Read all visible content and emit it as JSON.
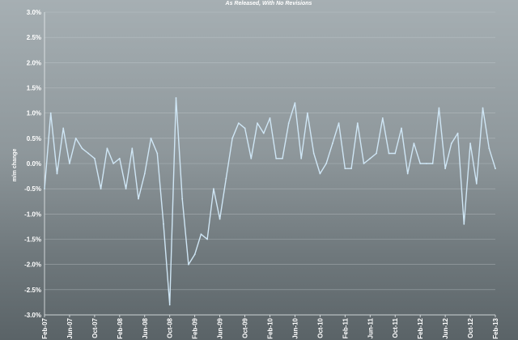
{
  "chart_data": {
    "type": "line",
    "title": "As Released, With No Revisions",
    "xlabel": "",
    "ylabel": "m/m change",
    "ylim": [
      -3.0,
      3.0
    ],
    "yticks": [
      "3.0%",
      "2.5%",
      "2.0%",
      "1.5%",
      "1.0%",
      "0.5%",
      "0.0%",
      "-0.5%",
      "-1.0%",
      "-1.5%",
      "-2.0%",
      "-2.5%",
      "-3.0%"
    ],
    "xticks": [
      "Feb-07",
      "Jun-07",
      "Oct-07",
      "Feb-08",
      "Jun-08",
      "Oct-08",
      "Feb-09",
      "Jun-09",
      "Oct-09",
      "Feb-10",
      "Jun-10",
      "Oct-10",
      "Feb-11",
      "Jun-11",
      "Oct-11",
      "Feb-12",
      "Jun-12",
      "Oct-12",
      "Feb-13"
    ],
    "grid": true,
    "line_color": "#cfe6f5",
    "series": [
      {
        "name": "",
        "x": [
          "2007-02",
          "2007-03",
          "2007-04",
          "2007-05",
          "2007-06",
          "2007-07",
          "2007-08",
          "2007-09",
          "2007-10",
          "2007-11",
          "2007-12",
          "2008-01",
          "2008-02",
          "2008-03",
          "2008-04",
          "2008-05",
          "2008-06",
          "2008-07",
          "2008-08",
          "2008-09",
          "2008-10",
          "2008-11",
          "2008-12",
          "2009-01",
          "2009-02",
          "2009-03",
          "2009-04",
          "2009-05",
          "2009-06",
          "2009-07",
          "2009-08",
          "2009-09",
          "2009-10",
          "2009-11",
          "2009-12",
          "2010-01",
          "2010-02",
          "2010-03",
          "2010-04",
          "2010-05",
          "2010-06",
          "2010-07",
          "2010-08",
          "2010-09",
          "2010-10",
          "2010-11",
          "2010-12",
          "2011-01",
          "2011-02",
          "2011-03",
          "2011-04",
          "2011-05",
          "2011-06",
          "2011-07",
          "2011-08",
          "2011-09",
          "2011-10",
          "2011-11",
          "2011-12",
          "2012-01",
          "2012-02",
          "2012-03",
          "2012-04",
          "2012-05",
          "2012-06",
          "2012-07",
          "2012-08",
          "2012-09",
          "2012-10",
          "2012-11",
          "2012-12",
          "2013-01",
          "2013-02"
        ],
        "values": [
          -0.5,
          1.0,
          -0.2,
          0.7,
          0.0,
          0.5,
          0.3,
          0.2,
          0.1,
          -0.5,
          0.3,
          0.0,
          0.1,
          -0.5,
          0.3,
          -0.7,
          -0.2,
          0.5,
          0.2,
          -1.2,
          -2.8,
          1.3,
          -0.7,
          -2.0,
          -1.8,
          -1.4,
          -1.5,
          -0.5,
          -1.1,
          -0.3,
          0.5,
          0.8,
          0.7,
          0.1,
          0.8,
          0.6,
          0.9,
          0.1,
          0.1,
          0.8,
          1.2,
          0.1,
          1.0,
          0.2,
          -0.2,
          0.0,
          0.4,
          0.8,
          -0.1,
          -0.1,
          0.8,
          0.0,
          0.1,
          0.2,
          0.9,
          0.2,
          0.2,
          0.7,
          -0.2,
          0.4,
          0.0,
          0.0,
          0.0,
          1.1,
          -0.1,
          0.4,
          0.6,
          -1.2,
          0.4,
          -0.4,
          1.1,
          0.3,
          -0.1
        ]
      }
    ]
  }
}
